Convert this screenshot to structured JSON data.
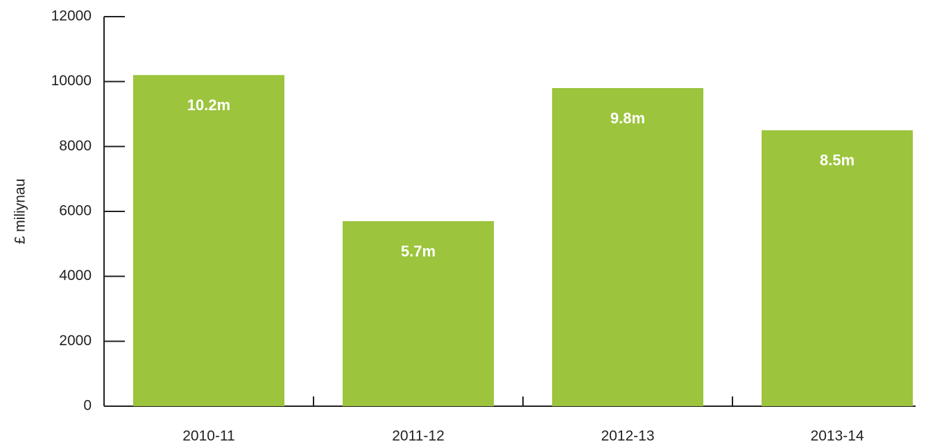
{
  "chart_data": {
    "type": "bar",
    "y_label": "£ miliynau",
    "categories": [
      "2010-11",
      "2011-12",
      "2012-13",
      "2013-14"
    ],
    "values": [
      10200,
      5700,
      9800,
      8500
    ],
    "value_labels": [
      "10.2m",
      "5.7m",
      "9.8m",
      "8.5m"
    ],
    "color": "#9cc43d",
    "ylim": [
      0,
      12000
    ],
    "yticks": [
      0,
      2000,
      4000,
      6000,
      8000,
      10000,
      12000
    ],
    "grid": false
  }
}
